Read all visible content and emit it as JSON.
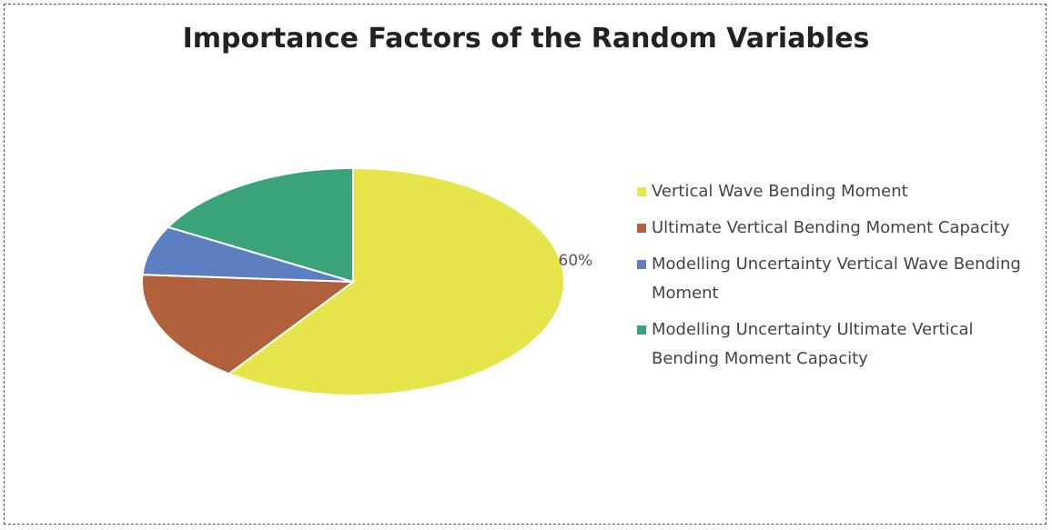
{
  "chart_data": {
    "type": "pie",
    "title": "Importance Factors of the Random Variables",
    "categories": [
      "Vertical Wave Bending Moment",
      "Ultimate Vertical Bending Moment Capacity",
      "Modelling Uncertainty Vertical Wave Bending Moment",
      "Modelling Uncertainty Ultimate Vertical Bending Moment Capacity"
    ],
    "values": [
      60,
      16,
      7,
      17
    ],
    "value_labels": [
      "60%",
      null,
      null,
      null
    ],
    "colors": [
      "#e6e64c",
      "#b0603a",
      "#5b7fc0",
      "#3aa37a"
    ]
  }
}
